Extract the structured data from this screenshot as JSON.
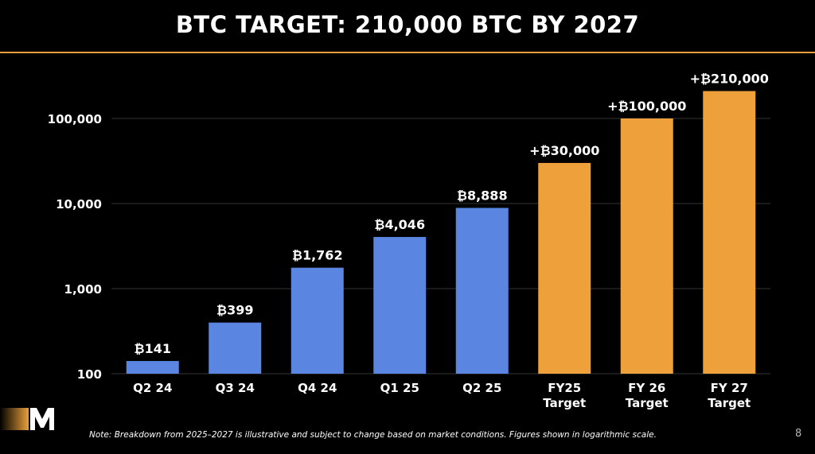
{
  "slide": {
    "title": "BTC TARGET: 210,000 BTC BY 2027",
    "footnote": "Note: Breakdown from 2025–2027 is illustrative and subject to change based on market conditions. Figures shown in logarithmic scale.",
    "page_number": "8",
    "logo_letter": "M"
  },
  "colors": {
    "actual_bar": "#5a86e2",
    "target_bar": "#eea13a",
    "accent_rule": "#e9a03b",
    "grid": "#333333"
  },
  "chart_data": {
    "type": "bar",
    "yscale": "log",
    "ylim": [
      100,
      300000
    ],
    "yticks": [
      100,
      1000,
      10000,
      100000
    ],
    "ytick_labels": [
      "100",
      "1,000",
      "10,000",
      "100,000"
    ],
    "grid": true,
    "categories": [
      "Q2 24",
      "Q3 24",
      "Q4 24",
      "Q1 25",
      "Q2 25",
      "FY25 Target",
      "FY 26 Target",
      "FY 27 Target"
    ],
    "category_lines": [
      [
        "Q2 24"
      ],
      [
        "Q3 24"
      ],
      [
        "Q4 24"
      ],
      [
        "Q1 25"
      ],
      [
        "Q2 25"
      ],
      [
        "FY25",
        "Target"
      ],
      [
        "FY 26",
        "Target"
      ],
      [
        "FY 27",
        "Target"
      ]
    ],
    "values": [
      141,
      399,
      1762,
      4046,
      8888,
      30000,
      100000,
      210000
    ],
    "data_labels": [
      "₿141",
      "₿399",
      "₿1,762",
      "₿4,046",
      "₿8,888",
      "+₿30,000",
      "+₿100,000",
      "+₿210,000"
    ],
    "kinds": [
      "actual",
      "actual",
      "actual",
      "actual",
      "actual",
      "target",
      "target",
      "target"
    ]
  }
}
